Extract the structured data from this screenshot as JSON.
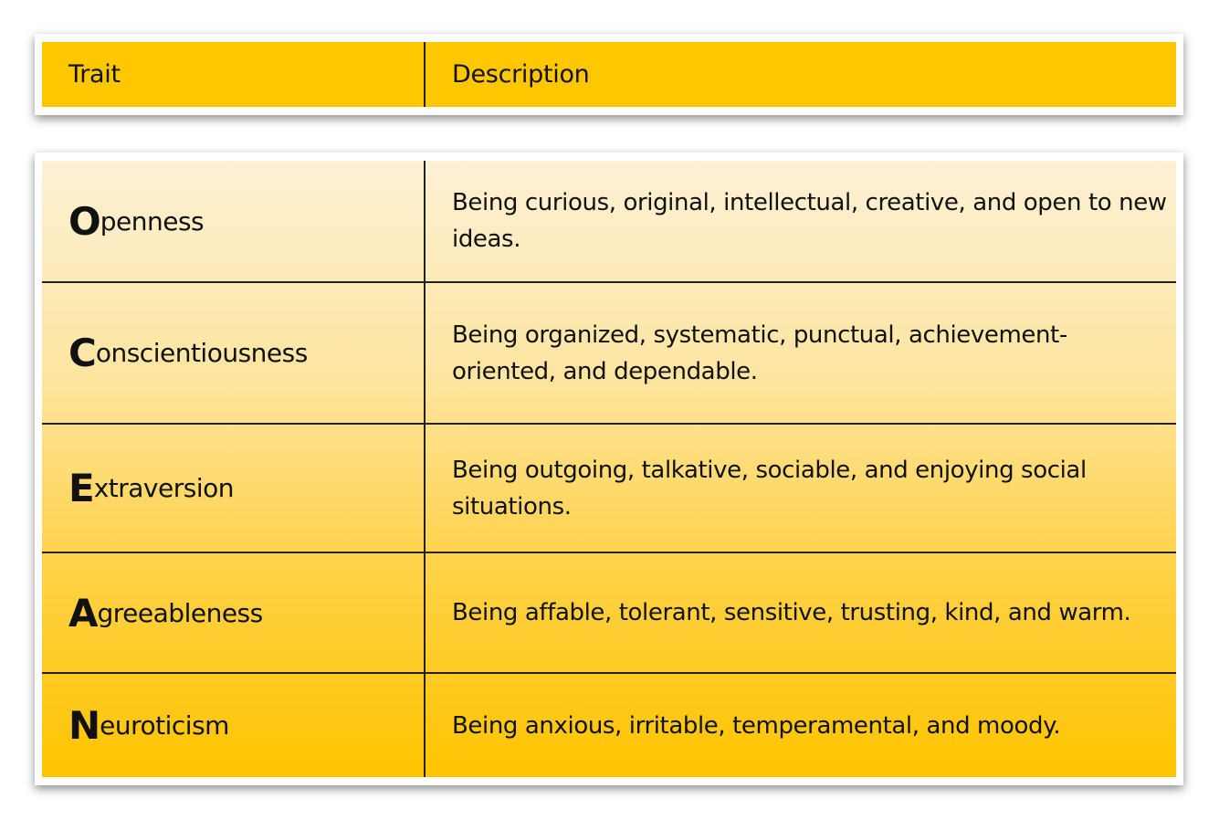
{
  "header": {
    "trait": "Trait",
    "description": "Description"
  },
  "rows": [
    {
      "initial": "O",
      "rest": "penness",
      "description": "Being curious, original, intellectual, creative, and open to new ideas."
    },
    {
      "initial": "C",
      "rest": "onscientiousness",
      "description": "Being organized, systematic, punctual, achievement-oriented, and dependable."
    },
    {
      "initial": "E",
      "rest": "xtraversion",
      "description": "Being outgoing, talkative, sociable, and enjoying social situations."
    },
    {
      "initial": "A",
      "rest": "greeableness",
      "description": "Being affable, tolerant, sensitive, trusting, kind, and warm."
    },
    {
      "initial": "N",
      "rest": "euroticism",
      "description": "Being anxious, irritable, temperamental, and moody."
    }
  ],
  "colors": {
    "header": "#ffc700",
    "gradient_top": "#fdf1d6",
    "gradient_bottom": "#ffc400"
  }
}
